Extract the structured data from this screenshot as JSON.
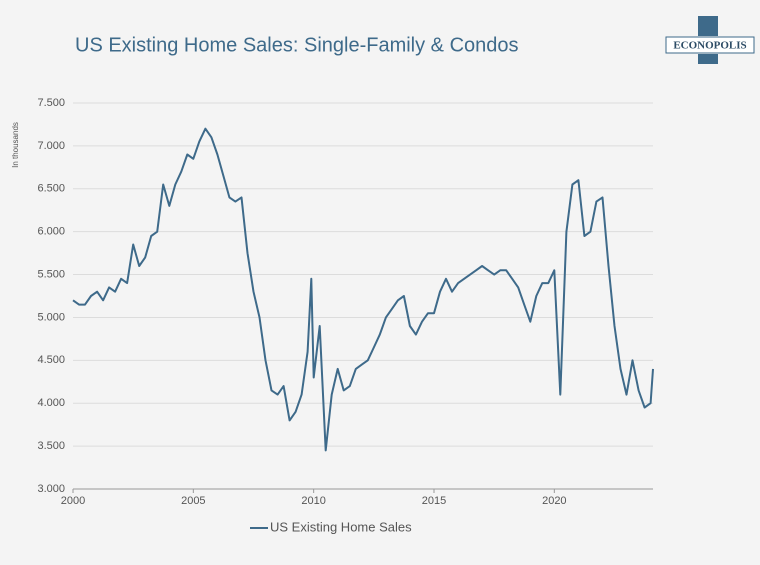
{
  "logo": "ECONOPOLIS",
  "chart_data": {
    "type": "line",
    "title": "US Existing Home Sales: Single-Family & Condos",
    "y_label": "In thousands",
    "x": [
      2000.0,
      2000.25,
      2000.5,
      2000.75,
      2001.0,
      2001.25,
      2001.5,
      2001.75,
      2002.0,
      2002.25,
      2002.5,
      2002.75,
      2003.0,
      2003.25,
      2003.5,
      2003.75,
      2004.0,
      2004.25,
      2004.5,
      2004.75,
      2005.0,
      2005.25,
      2005.5,
      2005.75,
      2006.0,
      2006.25,
      2006.5,
      2006.75,
      2007.0,
      2007.25,
      2007.5,
      2007.75,
      2008.0,
      2008.25,
      2008.5,
      2008.75,
      2009.0,
      2009.25,
      2009.5,
      2009.75,
      2009.9,
      2010.0,
      2010.25,
      2010.5,
      2010.75,
      2011.0,
      2011.25,
      2011.5,
      2011.75,
      2012.0,
      2012.25,
      2012.5,
      2012.75,
      2013.0,
      2013.25,
      2013.5,
      2013.75,
      2014.0,
      2014.25,
      2014.5,
      2014.75,
      2015.0,
      2015.25,
      2015.5,
      2015.75,
      2016.0,
      2016.25,
      2016.5,
      2016.75,
      2017.0,
      2017.25,
      2017.5,
      2017.75,
      2018.0,
      2018.25,
      2018.5,
      2018.75,
      2019.0,
      2019.25,
      2019.5,
      2019.75,
      2020.0,
      2020.25,
      2020.5,
      2020.75,
      2021.0,
      2021.25,
      2021.5,
      2021.75,
      2022.0,
      2022.25,
      2022.5,
      2022.75,
      2023.0,
      2023.25,
      2023.5,
      2023.75,
      2024.0,
      2024.1
    ],
    "series": [
      {
        "name": "US Existing Home Sales",
        "color": "#3e6a8a",
        "values": [
          5200,
          5150,
          5150,
          5250,
          5300,
          5200,
          5350,
          5300,
          5450,
          5400,
          5850,
          5600,
          5700,
          5950,
          6000,
          6550,
          6300,
          6550,
          6700,
          6900,
          6850,
          7050,
          7200,
          7100,
          6900,
          6650,
          6400,
          6350,
          6400,
          5750,
          5300,
          5000,
          4500,
          4150,
          4100,
          4200,
          3800,
          3900,
          4100,
          4600,
          5450,
          4300,
          4900,
          3450,
          4100,
          4400,
          4150,
          4200,
          4400,
          4450,
          4500,
          4650,
          4800,
          5000,
          5100,
          5200,
          5250,
          4900,
          4800,
          4950,
          5050,
          5050,
          5300,
          5450,
          5300,
          5400,
          5450,
          5500,
          5550,
          5600,
          5550,
          5500,
          5550,
          5550,
          5450,
          5350,
          5150,
          4950,
          5250,
          5400,
          5400,
          5550,
          4100,
          6000,
          6550,
          6600,
          5950,
          6000,
          6350,
          6400,
          5600,
          4900,
          4400,
          4100,
          4500,
          4150,
          3950,
          4000,
          4400
        ]
      }
    ],
    "xlim": [
      2000,
      2024.1
    ],
    "xticks": [
      2000,
      2005,
      2010,
      2015,
      2020
    ],
    "ylim": [
      3000,
      7500
    ],
    "yticks": [
      {
        "value": 3000,
        "label": "3.000"
      },
      {
        "value": 3500,
        "label": "3.500"
      },
      {
        "value": 4000,
        "label": "4.000"
      },
      {
        "value": 4500,
        "label": "4.500"
      },
      {
        "value": 5000,
        "label": "5.000"
      },
      {
        "value": 5500,
        "label": "5.500"
      },
      {
        "value": 6000,
        "label": "6.000"
      },
      {
        "value": 6500,
        "label": "6.500"
      },
      {
        "value": 7000,
        "label": "7.000"
      },
      {
        "value": 7500,
        "label": "7.500"
      }
    ],
    "grid": true,
    "legend": "bottom"
  }
}
